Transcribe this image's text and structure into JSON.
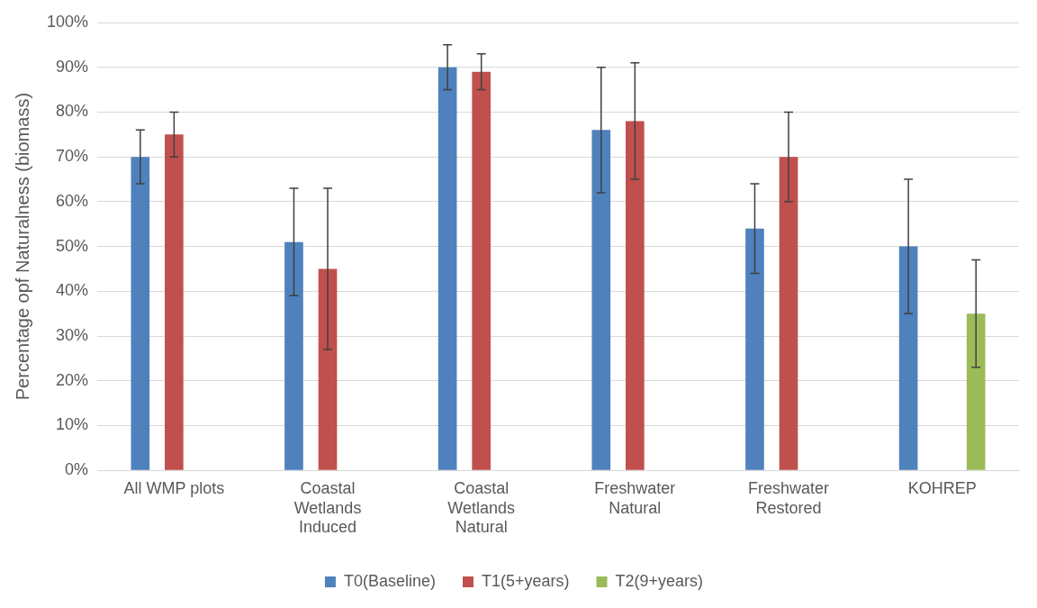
{
  "chart_data": {
    "type": "bar",
    "ylabel": "Percentage opf Naturalness (biomass)",
    "categories": [
      "All WMP plots",
      "Coastal Wetlands Induced",
      "Coastal Wetlands Natural",
      "Freshwater Natural",
      "Freshwater Restored",
      "KOHREP"
    ],
    "series": [
      {
        "name": "T0(Baseline)",
        "color": "#4f81bd",
        "values": [
          70,
          51,
          90,
          76,
          54,
          50
        ],
        "errors": [
          6,
          12,
          5,
          14,
          10,
          15
        ]
      },
      {
        "name": "T1(5+years)",
        "color": "#c0504d",
        "values": [
          75,
          45,
          89,
          78,
          70,
          null
        ],
        "errors": [
          5,
          18,
          4,
          13,
          10,
          null
        ]
      },
      {
        "name": "T2(9+years)",
        "color": "#9bbb59",
        "values": [
          null,
          null,
          null,
          null,
          null,
          35
        ],
        "errors": [
          null,
          null,
          null,
          null,
          null,
          12
        ]
      }
    ],
    "ylim": [
      0,
      100
    ],
    "yticks": [
      {
        "value": 0,
        "label": "0%"
      },
      {
        "value": 10,
        "label": "10%"
      },
      {
        "value": 20,
        "label": "20%"
      },
      {
        "value": 30,
        "label": "30%"
      },
      {
        "value": 40,
        "label": "40%"
      },
      {
        "value": 50,
        "label": "50%"
      },
      {
        "value": 60,
        "label": "60%"
      },
      {
        "value": 70,
        "label": "70%"
      },
      {
        "value": 80,
        "label": "80%"
      },
      {
        "value": 90,
        "label": "90%"
      },
      {
        "value": 100,
        "label": "100%"
      }
    ],
    "grid": "y",
    "legend": "bottom"
  }
}
